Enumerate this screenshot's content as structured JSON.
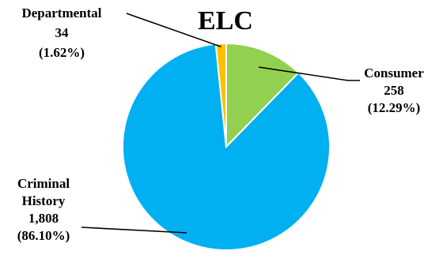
{
  "chart_data": {
    "type": "pie",
    "title": "ELC",
    "slices": [
      {
        "category": "Consumer",
        "value": 258,
        "value_label": "258",
        "percent_label": "(12.29%)",
        "color": "#92d050"
      },
      {
        "category": "Criminal History",
        "category_lines": [
          "Criminal",
          "History"
        ],
        "value": 1808,
        "value_label": "1,808",
        "percent_label": "(86.10%)",
        "color": "#00b0f0"
      },
      {
        "category": "Departmental",
        "value": 34,
        "value_label": "34",
        "percent_label": "(1.62%)",
        "color": "#ffc000"
      }
    ],
    "start_angle": "12 o'clock",
    "direction": "clockwise",
    "legend": "none"
  }
}
